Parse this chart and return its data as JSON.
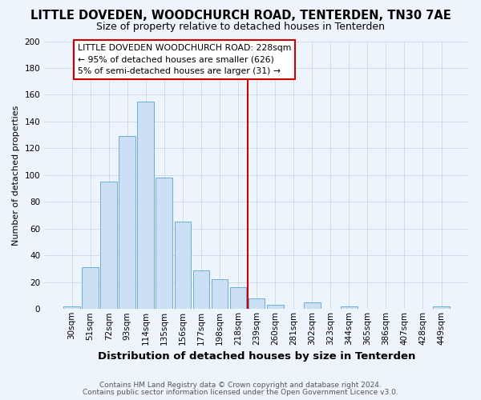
{
  "title": "LITTLE DOVEDEN, WOODCHURCH ROAD, TENTERDEN, TN30 7AE",
  "subtitle": "Size of property relative to detached houses in Tenterden",
  "xlabel": "Distribution of detached houses by size in Tenterden",
  "ylabel": "Number of detached properties",
  "footer_lines": [
    "Contains HM Land Registry data © Crown copyright and database right 2024.",
    "Contains public sector information licensed under the Open Government Licence v3.0."
  ],
  "bar_labels": [
    "30sqm",
    "51sqm",
    "72sqm",
    "93sqm",
    "114sqm",
    "135sqm",
    "156sqm",
    "177sqm",
    "198sqm",
    "218sqm",
    "239sqm",
    "260sqm",
    "281sqm",
    "302sqm",
    "323sqm",
    "344sqm",
    "365sqm",
    "386sqm",
    "407sqm",
    "428sqm",
    "449sqm"
  ],
  "bar_values": [
    2,
    31,
    95,
    129,
    155,
    98,
    65,
    29,
    22,
    16,
    8,
    3,
    0,
    5,
    0,
    2,
    0,
    0,
    0,
    0,
    2
  ],
  "bar_color": "#cce0f5",
  "bar_edge_color": "#6aaed6",
  "grid_color": "#c8d8e8",
  "background_color": "#eef4fb",
  "vline_x": 9.5,
  "vline_color": "#cc0000",
  "annotation_box_text": "LITTLE DOVEDEN WOODCHURCH ROAD: 228sqm\n← 95% of detached houses are smaller (626)\n5% of semi-detached houses are larger (31) →",
  "ylim": [
    0,
    200
  ],
  "yticks": [
    0,
    20,
    40,
    60,
    80,
    100,
    120,
    140,
    160,
    180,
    200
  ],
  "title_fontsize": 10.5,
  "subtitle_fontsize": 9,
  "ylabel_fontsize": 8,
  "xlabel_fontsize": 9.5,
  "tick_fontsize": 7.5,
  "annot_fontsize": 7.8,
  "footer_fontsize": 6.5
}
